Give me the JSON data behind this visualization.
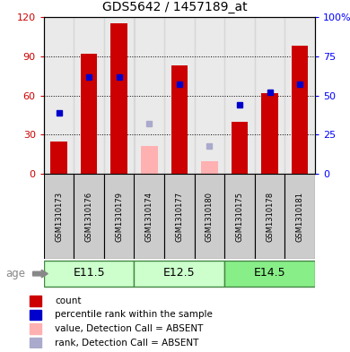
{
  "title": "GDS5642 / 1457189_at",
  "samples": [
    "GSM1310173",
    "GSM1310176",
    "GSM1310179",
    "GSM1310174",
    "GSM1310177",
    "GSM1310180",
    "GSM1310175",
    "GSM1310178",
    "GSM1310181"
  ],
  "count_values": [
    25,
    92,
    115,
    0,
    83,
    0,
    40,
    62,
    98
  ],
  "rank_values": [
    39,
    62,
    62,
    0,
    57,
    0,
    44,
    52,
    57
  ],
  "absent_count": [
    0,
    0,
    0,
    21,
    0,
    10,
    0,
    0,
    0
  ],
  "absent_rank": [
    0,
    0,
    0,
    32,
    0,
    18,
    0,
    0,
    0
  ],
  "age_groups": [
    {
      "label": "E11.5",
      "start": 0,
      "end": 3
    },
    {
      "label": "E12.5",
      "start": 3,
      "end": 6
    },
    {
      "label": "E14.5",
      "start": 6,
      "end": 9
    }
  ],
  "ylim_left": [
    0,
    120
  ],
  "ylim_right": [
    0,
    100
  ],
  "yticks_left": [
    0,
    30,
    60,
    90,
    120
  ],
  "yticks_right": [
    0,
    25,
    50,
    75,
    100
  ],
  "ytick_labels_right": [
    "0",
    "25",
    "50",
    "75",
    "100%"
  ],
  "bar_color_red": "#CC0000",
  "bar_color_blue": "#0000CC",
  "bar_color_pink": "#FFB0B0",
  "bar_color_lightblue": "#AAAACC",
  "bar_width": 0.55,
  "bg_color_sample": "#CCCCCC",
  "age_color_light": "#CCFFCC",
  "age_color_dark": "#88EE88",
  "age_border": "#448844",
  "legend_items": [
    {
      "color": "#CC0000",
      "label": "count"
    },
    {
      "color": "#0000CC",
      "label": "percentile rank within the sample"
    },
    {
      "color": "#FFB0B0",
      "label": "value, Detection Call = ABSENT"
    },
    {
      "color": "#AAAACC",
      "label": "rank, Detection Call = ABSENT"
    }
  ]
}
